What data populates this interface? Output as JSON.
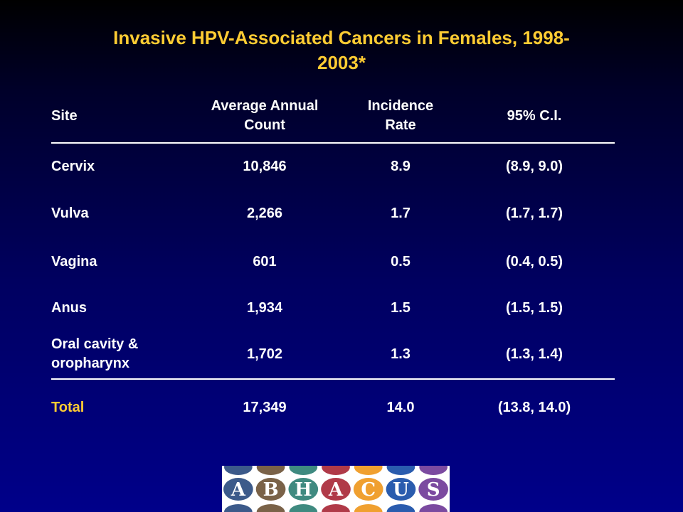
{
  "title": "Invasive HPV-Associated Cancers in Females, 1998-2003*",
  "title_line1": "Invasive HPV-Associated Cancers in Females, 1998-",
  "title_line2": "2003*",
  "table": {
    "headers": {
      "site": "Site",
      "count_line1": "Average Annual",
      "count_line2": "Count",
      "rate_line1": "Incidence",
      "rate_line2": "Rate",
      "ci": "95% C.I."
    },
    "rows": [
      {
        "site": "Cervix",
        "count": "10,846",
        "rate": "8.9",
        "ci": "(8.9, 9.0)"
      },
      {
        "site": "Vulva",
        "count": "2,266",
        "rate": "1.7",
        "ci": "(1.7, 1.7)"
      },
      {
        "site": "Vagina",
        "count": "601",
        "rate": "0.5",
        "ci": "(0.4, 0.5)"
      },
      {
        "site": "Anus",
        "count": "1,934",
        "rate": "1.5",
        "ci": "(1.5, 1.5)"
      },
      {
        "site_line1": "Oral cavity &",
        "site_line2": "oropharynx",
        "count": "1,702",
        "rate": "1.3",
        "ci": "(1.3, 1.4)"
      }
    ],
    "total": {
      "site": "Total",
      "count": "17,349",
      "rate": "14.0",
      "ci": "(13.8, 14.0)"
    }
  },
  "logo": {
    "letters": [
      "A",
      "B",
      "H",
      "A",
      "C",
      "U",
      "S"
    ],
    "colors": [
      "#3c5a8a",
      "#7a6248",
      "#3f8a80",
      "#b03a48",
      "#f0a030",
      "#2a5cae",
      "#7b4aa0"
    ]
  },
  "colors": {
    "title": "#ffcc33",
    "text": "#ffffff",
    "total_label": "#ffcc33",
    "background_top": "#000000",
    "background_bottom": "#00008a"
  }
}
